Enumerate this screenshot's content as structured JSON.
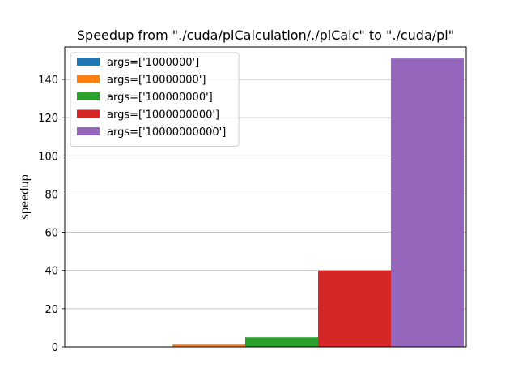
{
  "chart_data": {
    "type": "bar",
    "title": "Speedup from \"./cuda/piCalculation/./piCalc\" to \"./cuda/pi\"",
    "xlabel": "",
    "ylabel": "speedup",
    "ylim": [
      0,
      157
    ],
    "yticks": [
      0,
      20,
      40,
      60,
      80,
      100,
      120,
      140
    ],
    "grid": "horizontal",
    "legend_position": "top-left",
    "series": [
      {
        "name": "args=['1000000']",
        "value": 0.1,
        "color": "#1f77b4"
      },
      {
        "name": "args=['10000000']",
        "value": 1.2,
        "color": "#ff7f0e"
      },
      {
        "name": "args=['100000000']",
        "value": 5.0,
        "color": "#2ca02c"
      },
      {
        "name": "args=['1000000000']",
        "value": 40.0,
        "color": "#d62728"
      },
      {
        "name": "args=['10000000000']",
        "value": 151.0,
        "color": "#9467bd"
      }
    ]
  }
}
